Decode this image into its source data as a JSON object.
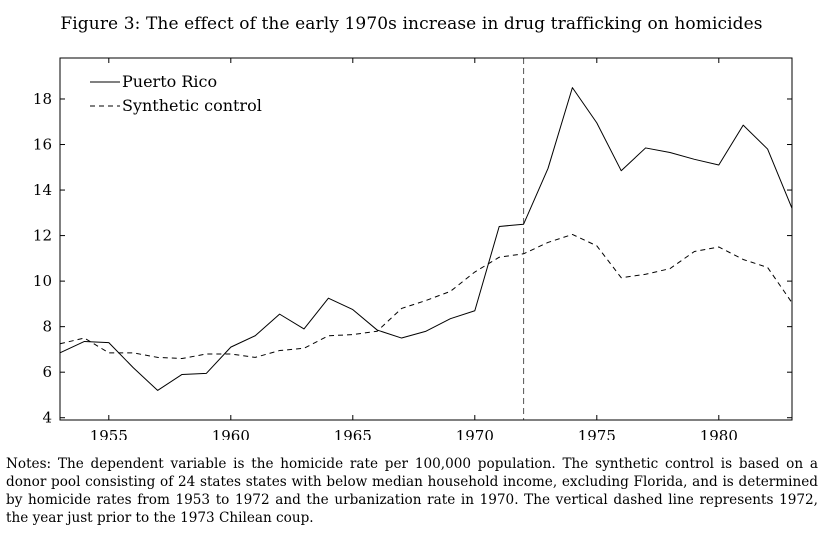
{
  "title": "Figure 3: The effect of the early 1970s increase in drug trafficking on homicides",
  "notes": "Notes: The dependent variable is the homicide rate per 100,000 population. The synthetic control is based on a donor pool consisting of 24 states states with below median household income, excluding Florida, and is determined by homicide rates from 1953 to 1972 and the urbanization rate in 1970. The vertical dashed line represents 1972, the year just prior to the 1973 Chilean coup.",
  "chart_data": {
    "type": "line",
    "title": "",
    "xlabel": "",
    "ylabel": "",
    "xlim": [
      1953,
      1983
    ],
    "ylim": [
      3.9,
      19.8
    ],
    "xticks": [
      1955,
      1960,
      1965,
      1970,
      1975,
      1980
    ],
    "yticks": [
      4,
      6,
      8,
      10,
      12,
      14,
      16,
      18
    ],
    "vline": 1972,
    "legend_position": "top-left",
    "grid": false,
    "x": [
      1953,
      1954,
      1955,
      1956,
      1957,
      1958,
      1959,
      1960,
      1961,
      1962,
      1963,
      1964,
      1965,
      1966,
      1967,
      1968,
      1969,
      1970,
      1971,
      1972,
      1973,
      1974,
      1975,
      1976,
      1977,
      1978,
      1979,
      1980,
      1981,
      1982,
      1983
    ],
    "series": [
      {
        "name": "Puerto Rico",
        "style": "solid",
        "values": [
          6.85,
          7.35,
          7.3,
          6.2,
          5.2,
          5.9,
          5.95,
          7.1,
          7.6,
          8.55,
          7.9,
          9.25,
          8.75,
          7.85,
          7.5,
          7.8,
          8.35,
          8.7,
          12.4,
          12.5,
          14.95,
          18.5,
          16.95,
          14.85,
          15.85,
          15.65,
          15.35,
          15.1,
          16.85,
          15.8,
          13.2
        ]
      },
      {
        "name": "Synthetic control",
        "style": "dashed",
        "values": [
          7.25,
          7.5,
          6.85,
          6.85,
          6.65,
          6.6,
          6.8,
          6.8,
          6.65,
          6.95,
          7.05,
          7.6,
          7.65,
          7.8,
          8.8,
          9.15,
          9.55,
          10.4,
          11.05,
          11.2,
          11.7,
          12.05,
          11.55,
          10.15,
          10.3,
          10.55,
          11.3,
          11.5,
          10.95,
          10.6,
          9.05
        ]
      }
    ]
  }
}
